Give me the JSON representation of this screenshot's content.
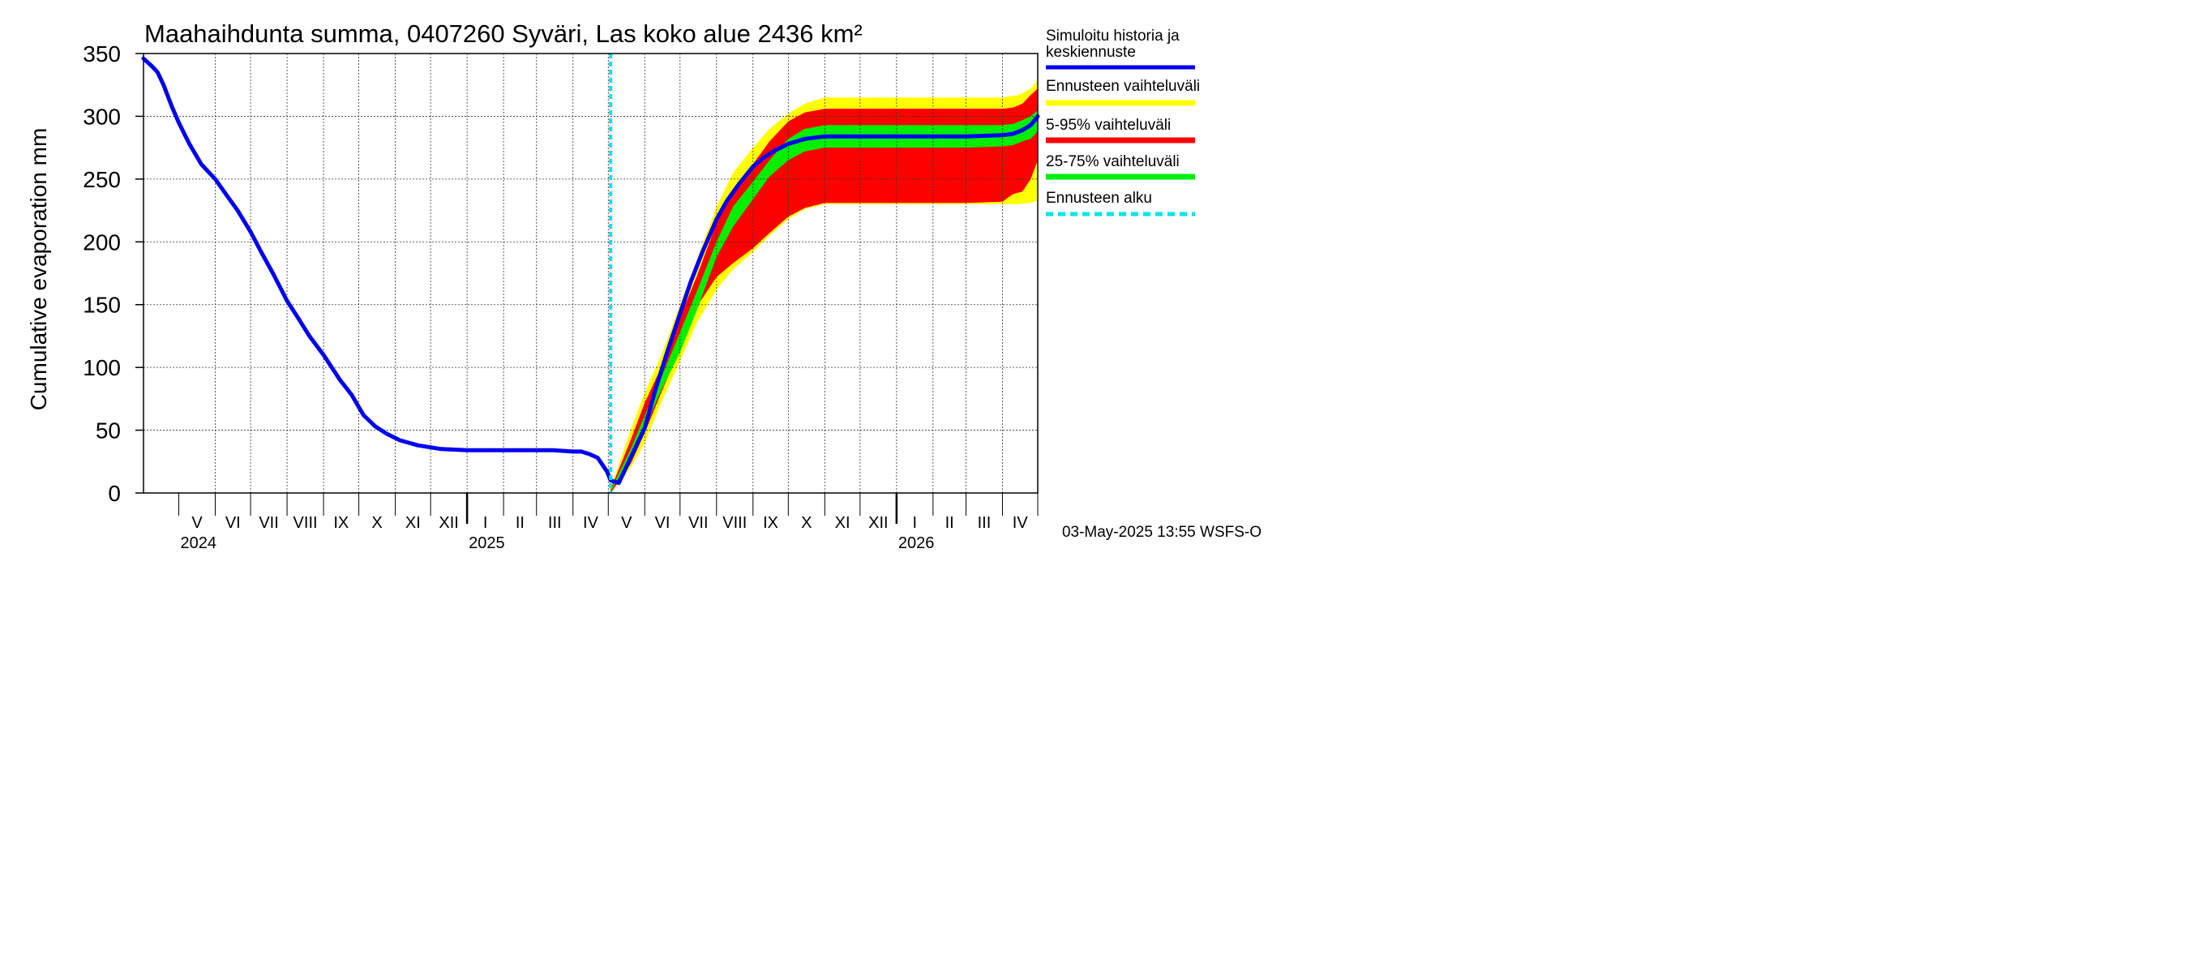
{
  "chart_data": {
    "type": "area",
    "title": "Maahaihdunta summa, 0407260 Syväri, Las koko alue 2436 km²",
    "ylabel": "Cumulative evaporation   mm",
    "ylim": [
      0,
      350
    ],
    "yticks": [
      0,
      50,
      100,
      150,
      200,
      250,
      300,
      350
    ],
    "xlim": [
      "2024-04-01",
      "2026-05-01"
    ],
    "forecast_start": "2025-05-03",
    "grid": true,
    "months": [
      "V",
      "VI",
      "VII",
      "VIII",
      "IX",
      "X",
      "XI",
      "XII",
      "I",
      "II",
      "III",
      "IV",
      "V",
      "VI",
      "VII",
      "VIII",
      "IX",
      "X",
      "XI",
      "XII",
      "I",
      "II",
      "III",
      "IV"
    ],
    "years": [
      {
        "label": "2024",
        "date": "2024-04-01"
      },
      {
        "label": "2025",
        "date": "2025-01-01"
      },
      {
        "label": "2026",
        "date": "2026-01-01"
      }
    ],
    "series": [
      {
        "name": "Simuloitu historia ja keskiennuste",
        "color": "#0000ee",
        "x": [
          "2024-04-01",
          "2024-04-08",
          "2024-04-13",
          "2024-04-18",
          "2024-04-25",
          "2024-05-01",
          "2024-05-10",
          "2024-05-20",
          "2024-06-01",
          "2024-06-10",
          "2024-06-20",
          "2024-07-01",
          "2024-07-10",
          "2024-07-20",
          "2024-08-01",
          "2024-08-10",
          "2024-08-20",
          "2024-09-01",
          "2024-09-15",
          "2024-09-25",
          "2024-10-05",
          "2024-10-15",
          "2024-10-25",
          "2024-11-05",
          "2024-11-20",
          "2024-12-10",
          "2025-01-01",
          "2025-02-01",
          "2025-03-01",
          "2025-03-15",
          "2025-04-01",
          "2025-04-08",
          "2025-04-15",
          "2025-04-22",
          "2025-04-30",
          "2025-05-03",
          "2025-05-10",
          "2025-05-20",
          "2025-06-01",
          "2025-06-10",
          "2025-06-20",
          "2025-07-01",
          "2025-07-10",
          "2025-07-20",
          "2025-08-01",
          "2025-08-10",
          "2025-08-20",
          "2025-09-01",
          "2025-09-10",
          "2025-09-20",
          "2025-10-01",
          "2025-10-15",
          "2025-11-01",
          "2025-12-01",
          "2026-01-01",
          "2026-02-01",
          "2026-03-01",
          "2026-04-01",
          "2026-04-10",
          "2026-04-18",
          "2026-04-25",
          "2026-05-01"
        ],
        "y": [
          346,
          340,
          335,
          325,
          308,
          295,
          278,
          262,
          250,
          238,
          225,
          208,
          192,
          175,
          153,
          140,
          125,
          110,
          90,
          78,
          62,
          53,
          47,
          42,
          38,
          35,
          34,
          34,
          34,
          34,
          33,
          33,
          31,
          28,
          17,
          10,
          8,
          28,
          52,
          82,
          112,
          143,
          168,
          192,
          218,
          233,
          246,
          260,
          267,
          273,
          278,
          282,
          284,
          284,
          284,
          284,
          284,
          285,
          286,
          289,
          293,
          300
        ]
      }
    ],
    "bands": [
      {
        "name": "Ennusteen vaihteluväli",
        "color": "#ffff00",
        "x": [
          "2025-05-03",
          "2025-05-20",
          "2025-06-01",
          "2025-06-15",
          "2025-07-01",
          "2025-07-15",
          "2025-08-01",
          "2025-08-15",
          "2025-09-01",
          "2025-09-15",
          "2025-10-01",
          "2025-10-15",
          "2025-11-01",
          "2026-01-01",
          "2026-03-01",
          "2026-04-01",
          "2026-04-15",
          "2026-04-25",
          "2026-05-01"
        ],
        "upper": [
          4,
          50,
          80,
          110,
          150,
          185,
          228,
          255,
          275,
          290,
          302,
          310,
          315,
          315,
          315,
          315,
          317,
          322,
          329
        ],
        "lower": [
          0,
          20,
          40,
          72,
          105,
          135,
          162,
          178,
          192,
          205,
          218,
          226,
          230,
          230,
          230,
          230,
          230,
          231,
          233
        ]
      },
      {
        "name": "5-95% vaihteluväli",
        "color": "#ff0000",
        "x": [
          "2025-05-03",
          "2025-05-20",
          "2025-06-01",
          "2025-06-15",
          "2025-07-01",
          "2025-07-15",
          "2025-08-01",
          "2025-08-15",
          "2025-09-01",
          "2025-09-15",
          "2025-10-01",
          "2025-10-15",
          "2025-11-01",
          "2026-01-01",
          "2026-03-01",
          "2026-04-01",
          "2026-04-10",
          "2026-04-18",
          "2026-04-25",
          "2026-05-01"
        ],
        "upper": [
          3,
          42,
          72,
          100,
          140,
          172,
          215,
          240,
          262,
          280,
          296,
          303,
          306,
          306,
          306,
          306,
          307,
          310,
          317,
          322
        ],
        "lower": [
          0,
          23,
          48,
          80,
          115,
          148,
          172,
          183,
          195,
          207,
          220,
          227,
          231,
          231,
          231,
          232,
          238,
          240,
          250,
          265
        ]
      },
      {
        "name": "25-75% vaihteluväli",
        "color": "#00ee00",
        "x": [
          "2025-05-03",
          "2025-05-20",
          "2025-06-01",
          "2025-06-15",
          "2025-07-01",
          "2025-07-15",
          "2025-08-01",
          "2025-08-15",
          "2025-09-01",
          "2025-09-15",
          "2025-10-01",
          "2025-10-15",
          "2025-11-01",
          "2026-01-01",
          "2026-03-01",
          "2026-04-01",
          "2026-04-10",
          "2026-04-18",
          "2026-04-25",
          "2026-05-01"
        ],
        "upper": [
          2,
          35,
          62,
          92,
          128,
          160,
          200,
          228,
          248,
          265,
          282,
          290,
          293,
          293,
          293,
          293,
          294,
          297,
          300,
          305
        ],
        "lower": [
          1,
          28,
          52,
          82,
          112,
          145,
          188,
          212,
          234,
          252,
          265,
          272,
          275,
          275,
          275,
          276,
          277,
          280,
          282,
          288
        ]
      }
    ],
    "legend": {
      "placement": "right",
      "items": [
        {
          "label": "Simuloitu historia ja keskiennuste",
          "color": "#0000ee",
          "style": "line"
        },
        {
          "label": "Ennusteen vaihteluväli",
          "color": "#ffff00",
          "style": "band"
        },
        {
          "label": "5-95% vaihteluväli",
          "color": "#ff0000",
          "style": "band"
        },
        {
          "label": "25-75% vaihteluväli",
          "color": "#00ee00",
          "style": "band"
        },
        {
          "label": "Ennusteen alku",
          "color": "#00e5e5",
          "style": "dashed"
        }
      ]
    }
  },
  "footer": "03-May-2025 13:55 WSFS-O"
}
